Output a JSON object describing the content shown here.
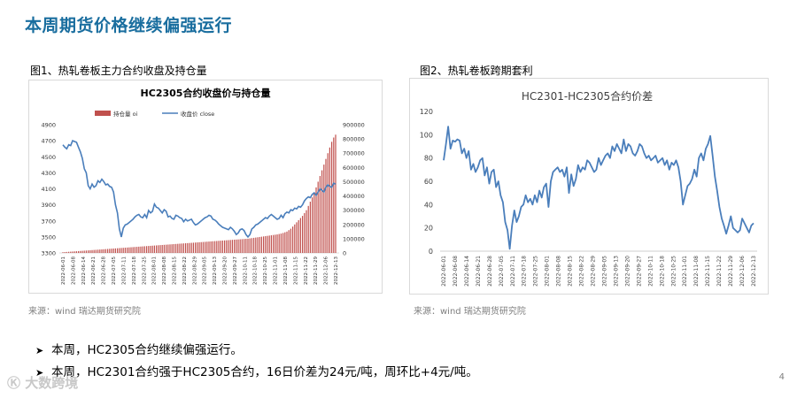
{
  "page": {
    "title": "本周期货价格继续偏强运行",
    "page_number": "4",
    "logo_text": "大数跨境"
  },
  "figure1": {
    "caption": "图1、热轧卷板主力合约收盘及持仓量",
    "source": "来源：wind   瑞达期货研究院"
  },
  "figure2": {
    "caption": "图2、热轧卷板跨期套利",
    "source": "来源：wind   瑞达期货研究院"
  },
  "bullets": [
    "本周，HC2305合约继续偏强运行。",
    "本周，HC2301合约强于HC2305合约，16日价差为24元/吨，周环比+4元/吨。"
  ],
  "colors": {
    "bar": "#c0504d",
    "line": "#4a7ebb",
    "title": "#1a6e9f"
  },
  "chart_data": [
    {
      "type": "bar+line",
      "title": "HC2305合约收盘价与持仓量",
      "legend": [
        "持仓量 oi",
        "收盘价 close"
      ],
      "legend_position": "top-center",
      "left_ylim": [
        3300,
        4900
      ],
      "left_yticks": [
        3300,
        3500,
        3700,
        3900,
        4100,
        4300,
        4500,
        4700,
        4900
      ],
      "right_ylim": [
        0,
        900000
      ],
      "right_yticks": [
        0,
        100000,
        200000,
        300000,
        400000,
        500000,
        600000,
        700000,
        800000,
        900000
      ],
      "xticks": [
        "2022-06-01",
        "2022-06-08",
        "2022-06-14",
        "2022-06-21",
        "2022-06-28",
        "2022-07-05",
        "2022-07-11",
        "2022-07-18",
        "2022-07-25",
        "2022-08-01",
        "2022-08-08",
        "2022-08-15",
        "2022-08-22",
        "2022-08-29",
        "2022-09-05",
        "2022-09-13",
        "2022-09-20",
        "2022-09-27",
        "2022-10-11",
        "2022-10-18",
        "2022-10-25",
        "2022-11-01",
        "2022-11-08",
        "2022-11-15",
        "2022-11-22",
        "2022-11-29",
        "2022-12-06",
        "2022-12-13"
      ],
      "oi": [
        5000,
        6000,
        7000,
        8000,
        9000,
        10000,
        11000,
        12000,
        13000,
        14000,
        15000,
        16000,
        17000,
        18000,
        19000,
        20000,
        21000,
        22000,
        23000,
        24000,
        25000,
        26000,
        27000,
        28000,
        29000,
        30000,
        31000,
        32000,
        33000,
        34000,
        35000,
        36000,
        37000,
        38000,
        39000,
        40000,
        41000,
        42000,
        43000,
        44000,
        45000,
        46000,
        47000,
        48000,
        49000,
        50000,
        51000,
        52000,
        53000,
        54000,
        55000,
        56000,
        57000,
        58000,
        59000,
        60000,
        61000,
        62000,
        63000,
        64000,
        65000,
        66000,
        67000,
        68000,
        69000,
        70000,
        71000,
        72000,
        73000,
        74000,
        75000,
        76000,
        77000,
        78000,
        79000,
        80000,
        81000,
        82000,
        83000,
        84000,
        85000,
        86000,
        87000,
        88000,
        89000,
        90000,
        91000,
        92000,
        93000,
        94000,
        95000,
        96000,
        97000,
        98000,
        99000,
        100000,
        102000,
        104000,
        106000,
        108000,
        110000,
        112000,
        114000,
        116000,
        118000,
        120000,
        122000,
        124000,
        126000,
        128000,
        130000,
        133000,
        136000,
        140000,
        145000,
        150000,
        160000,
        170000,
        185000,
        200000,
        215000,
        230000,
        245000,
        260000,
        280000,
        300000,
        330000,
        360000,
        390000,
        420000,
        460000,
        500000,
        540000,
        580000,
        620000,
        660000,
        700000,
        740000,
        780000,
        810000,
        830000
      ],
      "close": [
        4650,
        4620,
        4600,
        4650,
        4640,
        4700,
        4690,
        4680,
        4620,
        4560,
        4480,
        4350,
        4300,
        4140,
        4100,
        4160,
        4120,
        4140,
        4200,
        4180,
        4220,
        4190,
        4150,
        4160,
        4130,
        4120,
        4060,
        3900,
        3800,
        3600,
        3500,
        3610,
        3650,
        3660,
        3680,
        3700,
        3720,
        3750,
        3770,
        3780,
        3750,
        3740,
        3780,
        3740,
        3830,
        3800,
        3820,
        3910,
        3870,
        3860,
        3830,
        3800,
        3840,
        3820,
        3750,
        3760,
        3730,
        3720,
        3770,
        3760,
        3740,
        3730,
        3690,
        3720,
        3700,
        3710,
        3720,
        3680,
        3650,
        3660,
        3680,
        3700,
        3720,
        3740,
        3750,
        3770,
        3760,
        3720,
        3710,
        3690,
        3660,
        3640,
        3620,
        3610,
        3600,
        3590,
        3620,
        3600,
        3570,
        3530,
        3550,
        3590,
        3600,
        3580,
        3530,
        3500,
        3530,
        3600,
        3620,
        3650,
        3660,
        3680,
        3700,
        3720,
        3740,
        3730,
        3760,
        3780,
        3760,
        3740,
        3720,
        3730,
        3770,
        3740,
        3790,
        3810,
        3800,
        3840,
        3830,
        3860,
        3850,
        3880,
        3870,
        3900,
        3950,
        3980,
        4000,
        3990,
        4030,
        4050,
        4020,
        4060,
        4100,
        4080,
        4060,
        4120,
        4150,
        4130,
        4120,
        4170,
        4160
      ]
    },
    {
      "type": "line",
      "title": "HC2301-HC2305合约价差",
      "ylim": [
        0,
        120
      ],
      "yticks": [
        0,
        20,
        40,
        60,
        80,
        100,
        120
      ],
      "xticks": [
        "2022-06-01",
        "2022-06-08",
        "2022-06-14",
        "2022-06-21",
        "2022-06-28",
        "2022-07-05",
        "2022-07-11",
        "2022-07-18",
        "2022-07-25",
        "2022-08-01",
        "2022-08-08",
        "2022-08-15",
        "2022-08-22",
        "2022-08-29",
        "2022-09-05",
        "2022-09-13",
        "2022-09-20",
        "2022-09-27",
        "2022-10-11",
        "2022-10-18",
        "2022-10-25",
        "2022-11-01",
        "2022-11-08",
        "2022-11-15",
        "2022-11-22",
        "2022-11-29",
        "2022-12-06",
        "2022-12-13"
      ],
      "values": [
        78,
        92,
        107,
        88,
        95,
        94,
        96,
        95,
        84,
        88,
        80,
        86,
        70,
        75,
        68,
        72,
        78,
        80,
        65,
        72,
        58,
        68,
        70,
        55,
        60,
        48,
        42,
        25,
        18,
        2,
        22,
        35,
        25,
        30,
        38,
        40,
        48,
        42,
        45,
        40,
        48,
        42,
        52,
        46,
        55,
        58,
        38,
        60,
        68,
        70,
        72,
        68,
        70,
        64,
        72,
        50,
        66,
        56,
        62,
        74,
        68,
        72,
        70,
        78,
        76,
        72,
        68,
        70,
        80,
        74,
        78,
        82,
        84,
        80,
        90,
        86,
        92,
        88,
        84,
        96,
        86,
        92,
        90,
        84,
        82,
        86,
        92,
        90,
        84,
        80,
        82,
        78,
        80,
        82,
        76,
        78,
        80,
        74,
        78,
        70,
        76,
        74,
        78,
        72,
        60,
        40,
        48,
        56,
        58,
        62,
        70,
        64,
        80,
        84,
        78,
        88,
        92,
        99,
        82,
        64,
        52,
        38,
        28,
        22,
        15,
        22,
        30,
        20,
        18,
        16,
        18,
        28,
        24,
        20,
        16,
        22,
        24
      ]
    }
  ]
}
